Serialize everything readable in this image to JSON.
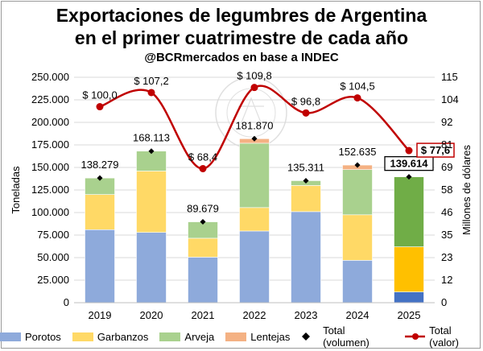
{
  "title_line1": "Exportaciones de legumbres de Argentina",
  "title_line2": "en el primer cuatrimestre de cada año",
  "subtitle": "@BCRmercados en base a INDEC",
  "chart_data": {
    "type": "bar",
    "stacked": true,
    "categories": [
      "2019",
      "2020",
      "2021",
      "2022",
      "2023",
      "2024",
      "2025"
    ],
    "ylabel": "Toneladas",
    "y2label": "Millones de dólares",
    "ylim": [
      0,
      250000
    ],
    "y2lim": [
      0,
      115
    ],
    "yticks": [
      "0",
      "25.000",
      "50.000",
      "75.000",
      "100.000",
      "125.000",
      "150.000",
      "175.000",
      "200.000",
      "225.000",
      "250.000"
    ],
    "y2ticks": [
      "0",
      "12",
      "23",
      "35",
      "46",
      "58",
      "69",
      "81",
      "92",
      "104",
      "115"
    ],
    "series": [
      {
        "name": "Porotos",
        "values": [
          81000,
          78000,
          50500,
          79500,
          101000,
          47000,
          12000
        ],
        "colors": [
          "#8eaadb",
          "#8eaadb",
          "#8eaadb",
          "#8eaadb",
          "#8eaadb",
          "#8eaadb",
          "#4472c4"
        ]
      },
      {
        "name": "Garbanzos",
        "values": [
          39000,
          68000,
          21000,
          26000,
          29000,
          50500,
          50000
        ],
        "colors": [
          "#ffd966",
          "#ffd966",
          "#ffd966",
          "#ffd966",
          "#ffd966",
          "#ffd966",
          "#ffc000"
        ]
      },
      {
        "name": "Arveja",
        "values": [
          18279,
          22113,
          18179,
          71370,
          5311,
          50135,
          77614
        ],
        "colors": [
          "#a9d18e",
          "#a9d18e",
          "#a9d18e",
          "#a9d18e",
          "#a9d18e",
          "#a9d18e",
          "#70ad47"
        ]
      },
      {
        "name": "Lentejas",
        "values": [
          0,
          0,
          0,
          5000,
          0,
          5000,
          0
        ],
        "colors": [
          "#f4b183",
          "#f4b183",
          "#f4b183",
          "#f4b183",
          "#f4b183",
          "#f4b183",
          "#f4b183"
        ]
      }
    ],
    "total_volumen": {
      "name": "Total (volumen)",
      "values": [
        138279,
        168113,
        89679,
        181870,
        135311,
        152635,
        139614
      ],
      "labels": [
        "138.279",
        "168.113",
        "89.679",
        "181.870",
        "135.311",
        "152.635",
        "139.614"
      ]
    },
    "total_valor": {
      "name": "Total (valor)",
      "values": [
        100.0,
        107.2,
        68.4,
        109.8,
        96.8,
        104.5,
        77.6
      ],
      "labels": [
        "$ 100,0",
        "$ 107,2",
        "$ 68,4",
        "$ 109,8",
        "$ 96,8",
        "$ 104,5",
        "$ 77,6"
      ],
      "color": "#c00000"
    },
    "highlight_last": true,
    "watermark": "BOLSA DE COMERCIO DE ROSARIO",
    "legend_position": "bottom"
  }
}
